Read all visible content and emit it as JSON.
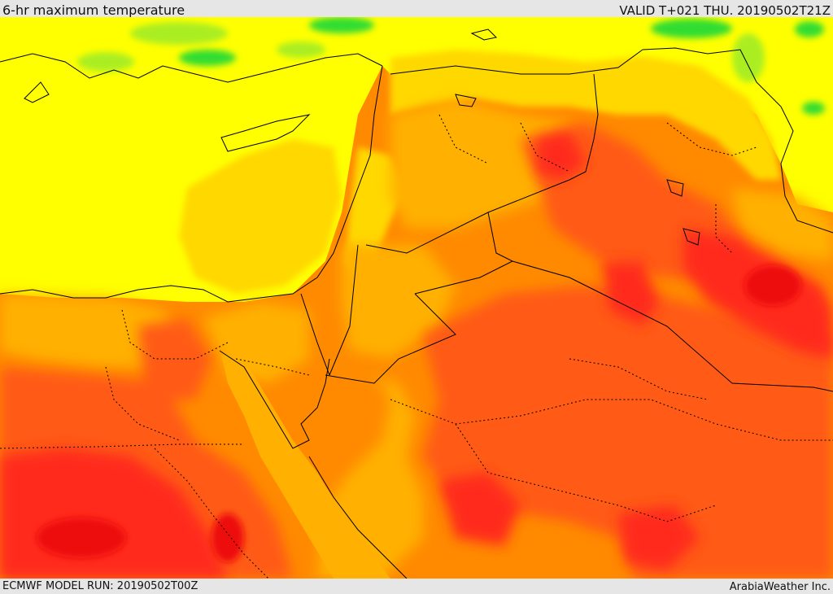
{
  "header": {
    "title": "6-hr maximum temperature",
    "valid": "VALID T+021 THU. 20190502T21Z"
  },
  "footer": {
    "model_run": "ECMWF MODEL RUN: 20190502T00Z",
    "credit": "ArabiaWeather Inc."
  },
  "palette": {
    "green": "#33dd33",
    "yellow_green": "#aaee22",
    "yellow": "#ffff00",
    "gold": "#ffd800",
    "orange_light": "#ffb000",
    "orange": "#ff8a00",
    "red_orange": "#ff5a14",
    "red": "#ff2a1a",
    "deep_red": "#ee1010",
    "coast": "#000000",
    "border": "#000000"
  }
}
